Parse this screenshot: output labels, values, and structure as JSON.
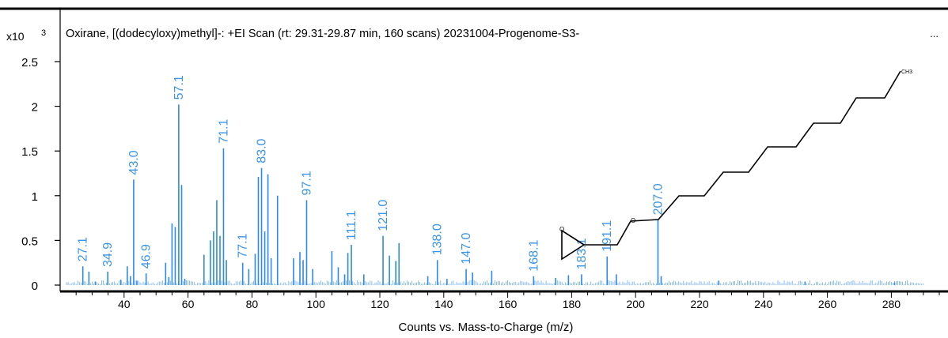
{
  "chart_data": {
    "type": "bar",
    "title": "Oxirane, [(dodecyloxy)methyl]-: +EI Scan (rt: 29.31-29.87 min, 160 scans) 20231004-Progenome-S3-",
    "title_ellipsis": "...",
    "xlabel": "Counts vs. Mass-to-Charge (m/z)",
    "y_multiplier_base": "x10",
    "y_multiplier_exp": "3",
    "xlim": [
      20,
      298
    ],
    "ylim": [
      0,
      2.7
    ],
    "x_ticks": [
      40,
      60,
      80,
      100,
      120,
      140,
      160,
      180,
      200,
      220,
      240,
      260,
      280
    ],
    "y_ticks": [
      0,
      0.5,
      1,
      1.5,
      2,
      2.5
    ],
    "y_tick_labels": [
      "0",
      "0.5",
      "1",
      "1.5",
      "2",
      "2.5"
    ],
    "grid": false,
    "bar_color": "#2e8ae6",
    "label_color": "#3a95e8",
    "labeled_peaks": [
      {
        "x": 27.1,
        "y": 0.21,
        "label": "27.1"
      },
      {
        "x": 34.9,
        "y": 0.15,
        "label": "34.9"
      },
      {
        "x": 43.0,
        "y": 1.18,
        "label": "43.0"
      },
      {
        "x": 46.9,
        "y": 0.13,
        "label": "46.9"
      },
      {
        "x": 57.1,
        "y": 2.02,
        "label": "57.1"
      },
      {
        "x": 71.1,
        "y": 1.53,
        "label": "71.1"
      },
      {
        "x": 77.1,
        "y": 0.25,
        "label": "77.1"
      },
      {
        "x": 83.0,
        "y": 1.31,
        "label": "83.0"
      },
      {
        "x": 97.1,
        "y": 0.95,
        "label": "97.1"
      },
      {
        "x": 111.1,
        "y": 0.45,
        "label": "111.1"
      },
      {
        "x": 121.0,
        "y": 0.55,
        "label": "121.0"
      },
      {
        "x": 138.0,
        "y": 0.28,
        "label": "138.0"
      },
      {
        "x": 147.0,
        "y": 0.18,
        "label": "147.0"
      },
      {
        "x": 168.1,
        "y": 0.1,
        "label": "168.1"
      },
      {
        "x": 183.1,
        "y": 0.12,
        "label": "183.1"
      },
      {
        "x": 191.1,
        "y": 0.32,
        "label": "191.1"
      },
      {
        "x": 207.0,
        "y": 0.73,
        "label": "207.0"
      }
    ],
    "minor_peaks": [
      {
        "x": 29,
        "y": 0.15
      },
      {
        "x": 31,
        "y": 0.04
      },
      {
        "x": 39,
        "y": 0.06
      },
      {
        "x": 41,
        "y": 0.21
      },
      {
        "x": 42,
        "y": 0.1
      },
      {
        "x": 44,
        "y": 0.05
      },
      {
        "x": 53,
        "y": 0.25
      },
      {
        "x": 54,
        "y": 0.09
      },
      {
        "x": 55,
        "y": 0.69
      },
      {
        "x": 56,
        "y": 0.65
      },
      {
        "x": 58,
        "y": 1.12
      },
      {
        "x": 59,
        "y": 0.07
      },
      {
        "x": 65,
        "y": 0.34
      },
      {
        "x": 67,
        "y": 0.5
      },
      {
        "x": 68,
        "y": 0.6
      },
      {
        "x": 69,
        "y": 0.95
      },
      {
        "x": 70,
        "y": 0.55
      },
      {
        "x": 72,
        "y": 0.28
      },
      {
        "x": 79,
        "y": 0.18
      },
      {
        "x": 81,
        "y": 0.35
      },
      {
        "x": 82,
        "y": 1.21
      },
      {
        "x": 84,
        "y": 0.6
      },
      {
        "x": 85,
        "y": 1.24
      },
      {
        "x": 86,
        "y": 0.3
      },
      {
        "x": 88,
        "y": 1.0
      },
      {
        "x": 93,
        "y": 0.3
      },
      {
        "x": 95,
        "y": 0.37
      },
      {
        "x": 96,
        "y": 0.28
      },
      {
        "x": 99,
        "y": 0.18
      },
      {
        "x": 105,
        "y": 0.38
      },
      {
        "x": 107,
        "y": 0.2
      },
      {
        "x": 109,
        "y": 0.12
      },
      {
        "x": 110,
        "y": 0.36
      },
      {
        "x": 115,
        "y": 0.12
      },
      {
        "x": 123,
        "y": 0.33
      },
      {
        "x": 125,
        "y": 0.27
      },
      {
        "x": 126,
        "y": 0.47
      },
      {
        "x": 135,
        "y": 0.1
      },
      {
        "x": 141,
        "y": 0.07
      },
      {
        "x": 149,
        "y": 0.14
      },
      {
        "x": 155,
        "y": 0.16
      },
      {
        "x": 175,
        "y": 0.08
      },
      {
        "x": 179,
        "y": 0.11
      },
      {
        "x": 194,
        "y": 0.12
      },
      {
        "x": 208,
        "y": 0.1
      },
      {
        "x": 226,
        "y": 0.05
      },
      {
        "x": 253,
        "y": 0.04
      },
      {
        "x": 281,
        "y": 0.03
      }
    ]
  },
  "structure": {
    "atom_labels": {
      "epoxide_oxygen": "O",
      "ether_oxygen": "O",
      "chain_end": "CH3"
    }
  }
}
